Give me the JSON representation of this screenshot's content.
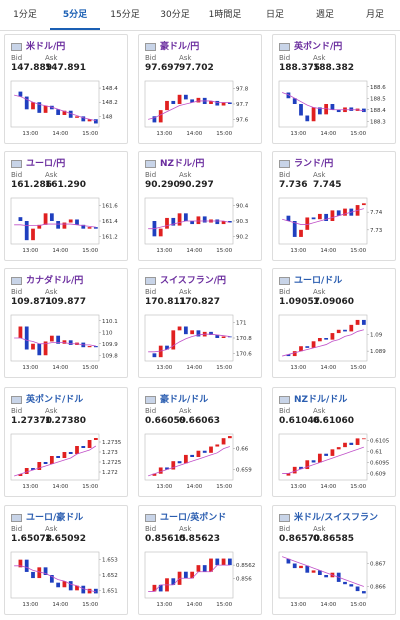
{
  "tabs": [
    "1分足",
    "5分足",
    "15分足",
    "30分足",
    "1時間足",
    "日足",
    "週足",
    "月足"
  ],
  "active_tab": 1,
  "cards": [
    {
      "name": "米ドル/円",
      "color": "#6a2c9e",
      "bid": {
        "label": "Bid",
        "value": "147.889"
      },
      "ask": {
        "label": "Ask",
        "value": "147.891"
      },
      "chart": {
        "ylim": [
          147.85,
          148.5
        ],
        "yticks": [
          148.4,
          148.2,
          148
        ],
        "xlabels": [
          "13:00",
          "14:00",
          "15:00"
        ],
        "closes": [
          148.35,
          148.28,
          148.1,
          148.2,
          148.05,
          148.15,
          148.1,
          148.02,
          148.08,
          147.98,
          148.0,
          147.93,
          147.96,
          147.9
        ],
        "ma": [
          148.3,
          148.28,
          148.24,
          148.2,
          148.17,
          148.15,
          148.13,
          148.1,
          148.07,
          148.04,
          148.01,
          147.98,
          147.96,
          147.94
        ]
      }
    },
    {
      "name": "豪ドル/円",
      "color": "#6a2c9e",
      "bid": {
        "label": "Bid",
        "value": "97.697"
      },
      "ask": {
        "label": "Ask",
        "value": "97.702"
      },
      "chart": {
        "ylim": [
          97.55,
          97.85
        ],
        "yticks": [
          97.8,
          97.7,
          97.6
        ],
        "xlabels": [
          "13:00",
          "14:00",
          "15:00"
        ],
        "closes": [
          97.62,
          97.58,
          97.66,
          97.72,
          97.7,
          97.76,
          97.73,
          97.71,
          97.74,
          97.7,
          97.72,
          97.69,
          97.71,
          97.7
        ],
        "ma": [
          97.6,
          97.61,
          97.63,
          97.65,
          97.67,
          97.69,
          97.7,
          97.71,
          97.72,
          97.72,
          97.72,
          97.71,
          97.71,
          97.71
        ]
      }
    },
    {
      "name": "英ポンド/円",
      "color": "#6a2c9e",
      "bid": {
        "label": "Bid",
        "value": "188.375"
      },
      "ask": {
        "label": "Ask",
        "value": "188.382"
      },
      "chart": {
        "ylim": [
          188.25,
          188.65
        ],
        "yticks": [
          188.6,
          188.5,
          188.4,
          188.3
        ],
        "xlabels": [
          "13:00",
          "14:00",
          "15:00"
        ],
        "closes": [
          188.55,
          188.5,
          188.45,
          188.35,
          188.3,
          188.42,
          188.36,
          188.45,
          188.4,
          188.38,
          188.42,
          188.39,
          188.41,
          188.38
        ],
        "ma": [
          188.55,
          188.53,
          188.5,
          188.47,
          188.44,
          188.42,
          188.41,
          188.41,
          188.4,
          188.4,
          188.4,
          188.4,
          188.4,
          188.39
        ]
      }
    },
    {
      "name": "ユーロ/円",
      "color": "#6a2c9e",
      "bid": {
        "label": "Bid",
        "value": "161.286"
      },
      "ask": {
        "label": "Ask",
        "value": "161.290"
      },
      "chart": {
        "ylim": [
          161.1,
          161.7
        ],
        "yticks": [
          161.6,
          161.4,
          161.2
        ],
        "xlabels": [
          "13:00",
          "14:00",
          "15:00"
        ],
        "closes": [
          161.45,
          161.4,
          161.15,
          161.3,
          161.35,
          161.5,
          161.4,
          161.3,
          161.38,
          161.42,
          161.35,
          161.3,
          161.32,
          161.3
        ],
        "ma": [
          161.35,
          161.35,
          161.34,
          161.34,
          161.34,
          161.36,
          161.36,
          161.36,
          161.36,
          161.36,
          161.35,
          161.34,
          161.33,
          161.32
        ]
      }
    },
    {
      "name": "NZドル/円",
      "color": "#6a2c9e",
      "bid": {
        "label": "Bid",
        "value": "90.290"
      },
      "ask": {
        "label": "Ask",
        "value": "90.297"
      },
      "chart": {
        "ylim": [
          90.15,
          90.45
        ],
        "yticks": [
          90.4,
          90.3,
          90.2
        ],
        "xlabels": [
          "13:00",
          "14:00",
          "15:00"
        ],
        "closes": [
          90.3,
          90.2,
          90.25,
          90.32,
          90.27,
          90.35,
          90.3,
          90.28,
          90.33,
          90.29,
          90.31,
          90.28,
          90.3,
          90.29
        ],
        "ma": [
          90.25,
          90.25,
          90.26,
          90.27,
          90.28,
          90.29,
          90.3,
          90.3,
          90.3,
          90.3,
          90.3,
          90.3,
          90.3,
          90.29
        ]
      }
    },
    {
      "name": "ランド/円",
      "color": "#6a2c9e",
      "bid": {
        "label": "Bid",
        "value": "7.736"
      },
      "ask": {
        "label": "Ask",
        "value": "7.745"
      },
      "chart": {
        "ylim": [
          7.722,
          7.748
        ],
        "yticks": [
          7.74,
          7.73
        ],
        "xlabels": [
          "13:00",
          "14:00",
          "15:00"
        ],
        "closes": [
          7.738,
          7.735,
          7.726,
          7.73,
          7.737,
          7.736,
          7.739,
          7.735,
          7.741,
          7.738,
          7.742,
          7.738,
          7.744,
          7.745
        ],
        "ma": [
          7.736,
          7.735,
          7.734,
          7.733,
          7.733,
          7.734,
          7.735,
          7.736,
          7.737,
          7.738,
          7.739,
          7.74,
          7.741,
          7.742
        ]
      }
    },
    {
      "name": "カナダドル/円",
      "color": "#6a2c9e",
      "bid": {
        "label": "Bid",
        "value": "109.871"
      },
      "ask": {
        "label": "Ask",
        "value": "109.877"
      },
      "chart": {
        "ylim": [
          109.75,
          110.15
        ],
        "yticks": [
          110.1,
          110,
          109.9,
          109.8
        ],
        "xlabels": [
          "13:00",
          "14:00",
          "15:00"
        ],
        "closes": [
          109.95,
          110.05,
          109.85,
          109.9,
          109.8,
          109.92,
          109.97,
          109.9,
          109.93,
          109.89,
          109.91,
          109.87,
          109.88,
          109.87
        ],
        "ma": [
          109.95,
          109.95,
          109.93,
          109.92,
          109.9,
          109.9,
          109.91,
          109.91,
          109.91,
          109.9,
          109.9,
          109.89,
          109.89,
          109.88
        ]
      }
    },
    {
      "name": "スイスフラン/円",
      "color": "#6a2c9e",
      "bid": {
        "label": "Bid",
        "value": "170.811"
      },
      "ask": {
        "label": "Ask",
        "value": "170.827"
      },
      "chart": {
        "ylim": [
          170.5,
          171.1
        ],
        "yticks": [
          171,
          170.8,
          170.6
        ],
        "xlabels": [
          "13:00",
          "14:00",
          "15:00"
        ],
        "closes": [
          170.6,
          170.55,
          170.7,
          170.65,
          170.9,
          170.95,
          170.85,
          170.9,
          170.82,
          170.88,
          170.84,
          170.8,
          170.82,
          170.81
        ],
        "ma": [
          170.62,
          170.62,
          170.63,
          170.65,
          170.7,
          170.75,
          170.79,
          170.82,
          170.84,
          170.85,
          170.85,
          170.84,
          170.83,
          170.82
        ]
      }
    },
    {
      "name": "ユーロ/ドル",
      "color": "#2a5db0",
      "bid": {
        "label": "Bid",
        "value": "1.09057"
      },
      "ask": {
        "label": "Ask",
        "value": "1.09060"
      },
      "chart": {
        "ylim": [
          1.0884,
          1.0912
        ],
        "yticks": [
          1.09,
          1.089
        ],
        "xlabels": [
          "13:00",
          "14:00",
          "15:00"
        ],
        "closes": [
          1.0888,
          1.0887,
          1.089,
          1.0893,
          1.0892,
          1.0896,
          1.0898,
          1.0897,
          1.0901,
          1.0903,
          1.0902,
          1.0906,
          1.0909,
          1.0906
        ],
        "ma": [
          1.0887,
          1.0888,
          1.0889,
          1.089,
          1.0891,
          1.0892,
          1.0893,
          1.0894,
          1.0896,
          1.0897,
          1.0899,
          1.09,
          1.0902,
          1.0903
        ]
      }
    },
    {
      "name": "英ポンド/ドル",
      "color": "#2a5db0",
      "bid": {
        "label": "Bid",
        "value": "1.27370"
      },
      "ask": {
        "label": "Ask",
        "value": "1.27380"
      },
      "chart": {
        "ylim": [
          1.2716,
          1.2739
        ],
        "yticks": [
          1.2735,
          1.273,
          1.2725,
          1.272
        ],
        "xlabels": [
          "13:00",
          "14:00",
          "15:00"
        ],
        "closes": [
          1.2718,
          1.2719,
          1.2722,
          1.2721,
          1.2725,
          1.2724,
          1.2728,
          1.2727,
          1.273,
          1.2729,
          1.2733,
          1.2732,
          1.2736,
          1.2737
        ],
        "ma": [
          1.2718,
          1.2719,
          1.272,
          1.2721,
          1.2722,
          1.2723,
          1.2724,
          1.2725,
          1.2726,
          1.2727,
          1.2729,
          1.273,
          1.2731,
          1.2733
        ]
      }
    },
    {
      "name": "豪ドル/ドル",
      "color": "#2a5db0",
      "bid": {
        "label": "Bid",
        "value": "0.66059"
      },
      "ask": {
        "label": "Ask",
        "value": "0.66063"
      },
      "chart": {
        "ylim": [
          0.6585,
          0.6607
        ],
        "yticks": [
          0.66,
          0.659
        ],
        "xlabels": [
          "13:00",
          "14:00",
          "15:00"
        ],
        "closes": [
          0.6587,
          0.6588,
          0.6591,
          0.659,
          0.6594,
          0.6593,
          0.6597,
          0.6596,
          0.6599,
          0.6598,
          0.6601,
          0.6602,
          0.6605,
          0.6606
        ],
        "ma": [
          0.6587,
          0.6588,
          0.6589,
          0.659,
          0.6591,
          0.6592,
          0.6593,
          0.6594,
          0.6595,
          0.6596,
          0.6597,
          0.6598,
          0.66,
          0.6601
        ]
      }
    },
    {
      "name": "NZドル/ドル",
      "color": "#2a5db0",
      "bid": {
        "label": "Bid",
        "value": "0.61046"
      },
      "ask": {
        "label": "Ask",
        "value": "0.61060"
      },
      "chart": {
        "ylim": [
          0.6087,
          0.6108
        ],
        "yticks": [
          0.6105,
          0.61,
          0.6095,
          0.609
        ],
        "xlabels": [
          "13:00",
          "14:00",
          "15:00"
        ],
        "closes": [
          0.6089,
          0.609,
          0.6093,
          0.6092,
          0.6096,
          0.6095,
          0.6099,
          0.6098,
          0.6101,
          0.6102,
          0.6104,
          0.6103,
          0.6106,
          0.6106
        ],
        "ma": [
          0.609,
          0.609,
          0.6091,
          0.6092,
          0.6093,
          0.6094,
          0.6095,
          0.6096,
          0.6097,
          0.6098,
          0.6099,
          0.61,
          0.6101,
          0.6102
        ]
      }
    },
    {
      "name": "ユーロ/豪ドル",
      "color": "#2a5db0",
      "bid": {
        "label": "Bid",
        "value": "1.65078"
      },
      "ask": {
        "label": "Ask",
        "value": "1.65092"
      },
      "chart": {
        "ylim": [
          1.6505,
          1.6535
        ],
        "yticks": [
          1.653,
          1.652,
          1.651
        ],
        "xlabels": [
          "13:00",
          "14:00",
          "15:00"
        ],
        "closes": [
          1.6525,
          1.653,
          1.6522,
          1.6518,
          1.6525,
          1.652,
          1.6515,
          1.6512,
          1.6516,
          1.651,
          1.6513,
          1.6508,
          1.6511,
          1.6508
        ],
        "ma": [
          1.6526,
          1.6526,
          1.6525,
          1.6523,
          1.6522,
          1.6521,
          1.6519,
          1.6517,
          1.6516,
          1.6514,
          1.6513,
          1.6511,
          1.651,
          1.6509
        ]
      }
    },
    {
      "name": "ユーロ/英ポンド",
      "color": "#2a5db0",
      "bid": {
        "label": "Bid",
        "value": "0.85615"
      },
      "ask": {
        "label": "Ask",
        "value": "0.85623"
      },
      "chart": {
        "ylim": [
          0.8557,
          0.8564
        ],
        "yticks": [
          0.8562,
          0.856
        ],
        "xlabels": [
          "13:00",
          "14:00",
          "15:00"
        ],
        "closes": [
          0.8558,
          0.8559,
          0.8558,
          0.856,
          0.8559,
          0.8561,
          0.856,
          0.8561,
          0.8562,
          0.8561,
          0.8563,
          0.8562,
          0.8563,
          0.8562
        ],
        "ma": [
          0.8558,
          0.8558,
          0.8559,
          0.8559,
          0.8559,
          0.856,
          0.856,
          0.856,
          0.8561,
          0.8561,
          0.8561,
          0.8562,
          0.8562,
          0.8562
        ]
      }
    },
    {
      "name": "米ドル/スイスフラン",
      "color": "#2a5db0",
      "bid": {
        "label": "Bid",
        "value": "0.86570"
      },
      "ask": {
        "label": "Ask",
        "value": "0.86585"
      },
      "chart": {
        "ylim": [
          0.8655,
          0.8675
        ],
        "yticks": [
          0.867,
          0.866
        ],
        "xlabels": [
          "13:00",
          "14:00",
          "15:00"
        ],
        "closes": [
          0.8672,
          0.867,
          0.8668,
          0.8669,
          0.8666,
          0.8667,
          0.8665,
          0.8664,
          0.8666,
          0.8662,
          0.8661,
          0.866,
          0.8658,
          0.8657
        ],
        "ma": [
          0.8673,
          0.8672,
          0.8671,
          0.867,
          0.8669,
          0.8668,
          0.8667,
          0.8666,
          0.8665,
          0.8664,
          0.8663,
          0.8662,
          0.8661,
          0.866
        ]
      }
    }
  ]
}
